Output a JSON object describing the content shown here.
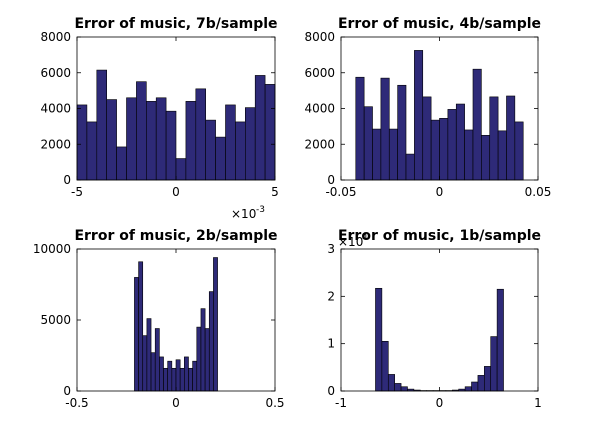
{
  "colors": {
    "bar_fill": "#2e2a78",
    "bar_edge": "#000000"
  },
  "chart_data": [
    {
      "type": "bar",
      "title": "Error of music, 7b/sample",
      "xlim": [
        -5,
        5
      ],
      "ylim": [
        0,
        8000
      ],
      "xticks": [
        -5,
        0,
        5
      ],
      "xtick_labels": [
        "-5",
        "0",
        "5"
      ],
      "yticks": [
        0,
        2000,
        4000,
        6000,
        8000
      ],
      "ytick_labels": [
        "0",
        "2000",
        "4000",
        "6000",
        "8000"
      ],
      "x_exponent": {
        "base": "×10",
        "power": "-3"
      },
      "bin_range": [
        -5,
        5
      ],
      "values": [
        4200,
        3250,
        6150,
        4500,
        1850,
        4600,
        5500,
        4400,
        4600,
        3850,
        1200,
        4400,
        5100,
        3350,
        2400,
        4200,
        3250,
        4050,
        5850,
        5350
      ]
    },
    {
      "type": "bar",
      "title": "Error of music, 4b/sample",
      "xlim": [
        -0.05,
        0.05
      ],
      "ylim": [
        0,
        8000
      ],
      "xticks": [
        -0.05,
        0,
        0.05
      ],
      "xtick_labels": [
        "-0.05",
        "0",
        "0.05"
      ],
      "yticks": [
        0,
        2000,
        4000,
        6000,
        8000
      ],
      "ytick_labels": [
        "0",
        "2000",
        "4000",
        "6000",
        "8000"
      ],
      "bin_range": [
        -0.0425,
        0.0425
      ],
      "values": [
        5750,
        4100,
        2850,
        5700,
        2850,
        5300,
        1450,
        7250,
        4650,
        3350,
        3450,
        3950,
        4250,
        2800,
        6200,
        2500,
        4650,
        2750,
        4700,
        3250
      ]
    },
    {
      "type": "bar",
      "title": "Error of music, 2b/sample",
      "xlim": [
        -0.5,
        0.5
      ],
      "ylim": [
        0,
        10000
      ],
      "xticks": [
        -0.5,
        0,
        0.5
      ],
      "xtick_labels": [
        "-0.5",
        "0",
        "0.5"
      ],
      "yticks": [
        0,
        5000,
        10000
      ],
      "ytick_labels": [
        "0",
        "5000",
        "10000"
      ],
      "bin_range": [
        -0.21,
        0.21
      ],
      "values": [
        8000,
        9100,
        3900,
        5100,
        2700,
        4400,
        2400,
        1600,
        2100,
        1600,
        2200,
        1600,
        2400,
        1600,
        2100,
        4500,
        5800,
        4400,
        7000,
        9400
      ]
    },
    {
      "type": "bar",
      "title": "Error of music, 1b/sample",
      "xlim": [
        -1,
        1
      ],
      "ylim": [
        0,
        3
      ],
      "xticks": [
        -1,
        0,
        1
      ],
      "xtick_labels": [
        "-1",
        "0",
        "1"
      ],
      "yticks": [
        0,
        1,
        2,
        3
      ],
      "ytick_labels": [
        "0",
        "1",
        "2",
        "3"
      ],
      "y_exponent": {
        "base": "×10",
        "power": "4"
      },
      "bin_range": [
        -0.65,
        0.65
      ],
      "values": [
        2.17,
        1.05,
        0.35,
        0.16,
        0.09,
        0.04,
        0.02,
        0.01,
        0.01,
        0.01,
        0.01,
        0.01,
        0.02,
        0.04,
        0.09,
        0.19,
        0.33,
        0.52,
        1.15,
        2.15
      ]
    }
  ]
}
